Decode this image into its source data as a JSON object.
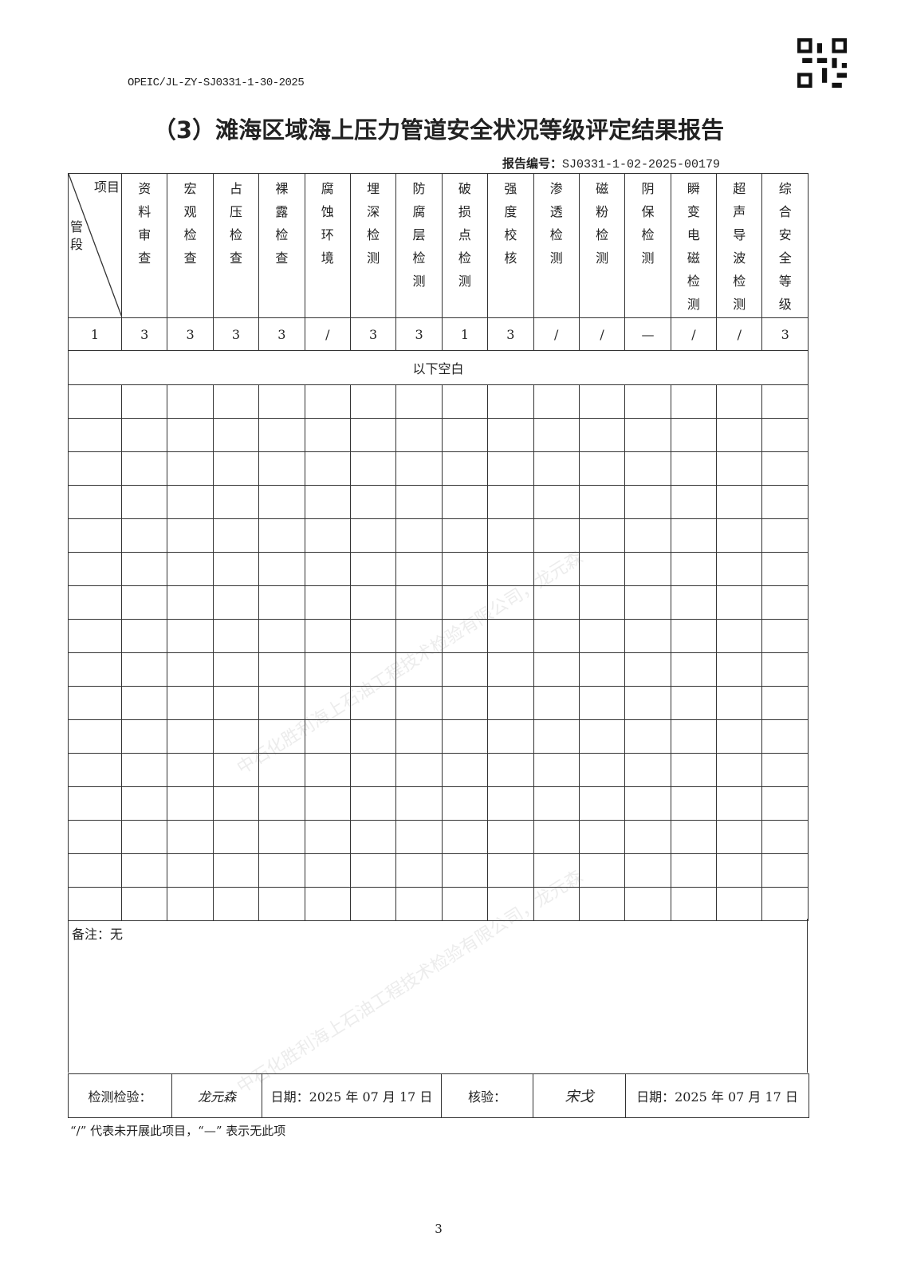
{
  "doc_code": "OPEIC/JL-ZY-SJ0331-1-30-2025",
  "title": "（3）滩海区域海上压力管道安全状况等级评定结果报告",
  "report_no_label": "报告编号：",
  "report_no": "SJ0331-1-02-2025-00179",
  "corner_top": "项目",
  "corner_bottom": "管段",
  "columns": [
    "资料审查",
    "宏观检查",
    "占压检查",
    "裸露检查",
    "腐蚀环境",
    "埋深检测",
    "防腐层检测",
    "破损点检测",
    "强度校核",
    "渗透检测",
    "磁粉检测",
    "阴保检测",
    "瞬变电磁检测",
    "超声导波检测",
    "综合安全等级"
  ],
  "rows": [
    {
      "segment": "1",
      "values": [
        "3",
        "3",
        "3",
        "3",
        "/",
        "3",
        "3",
        "1",
        "3",
        "/",
        "/",
        "—",
        "/",
        "/",
        "3"
      ]
    }
  ],
  "blank_note": "以下空白",
  "remarks": "备注：无",
  "signoff": {
    "inspect_label": "检测检验：",
    "inspector_sig": "龙元森",
    "date1": "日期：2025 年 07 月 17 日",
    "review_label": "核验：",
    "reviewer_sig": "宋戈",
    "date2": "日期：2025 年 07 月 17 日"
  },
  "legend_note": "“/” 代表未开展此项目，“—” 表示无此项",
  "page_number": "3",
  "watermark": "中石化胜利海上石油工程技术检验有限公司，龙元森"
}
